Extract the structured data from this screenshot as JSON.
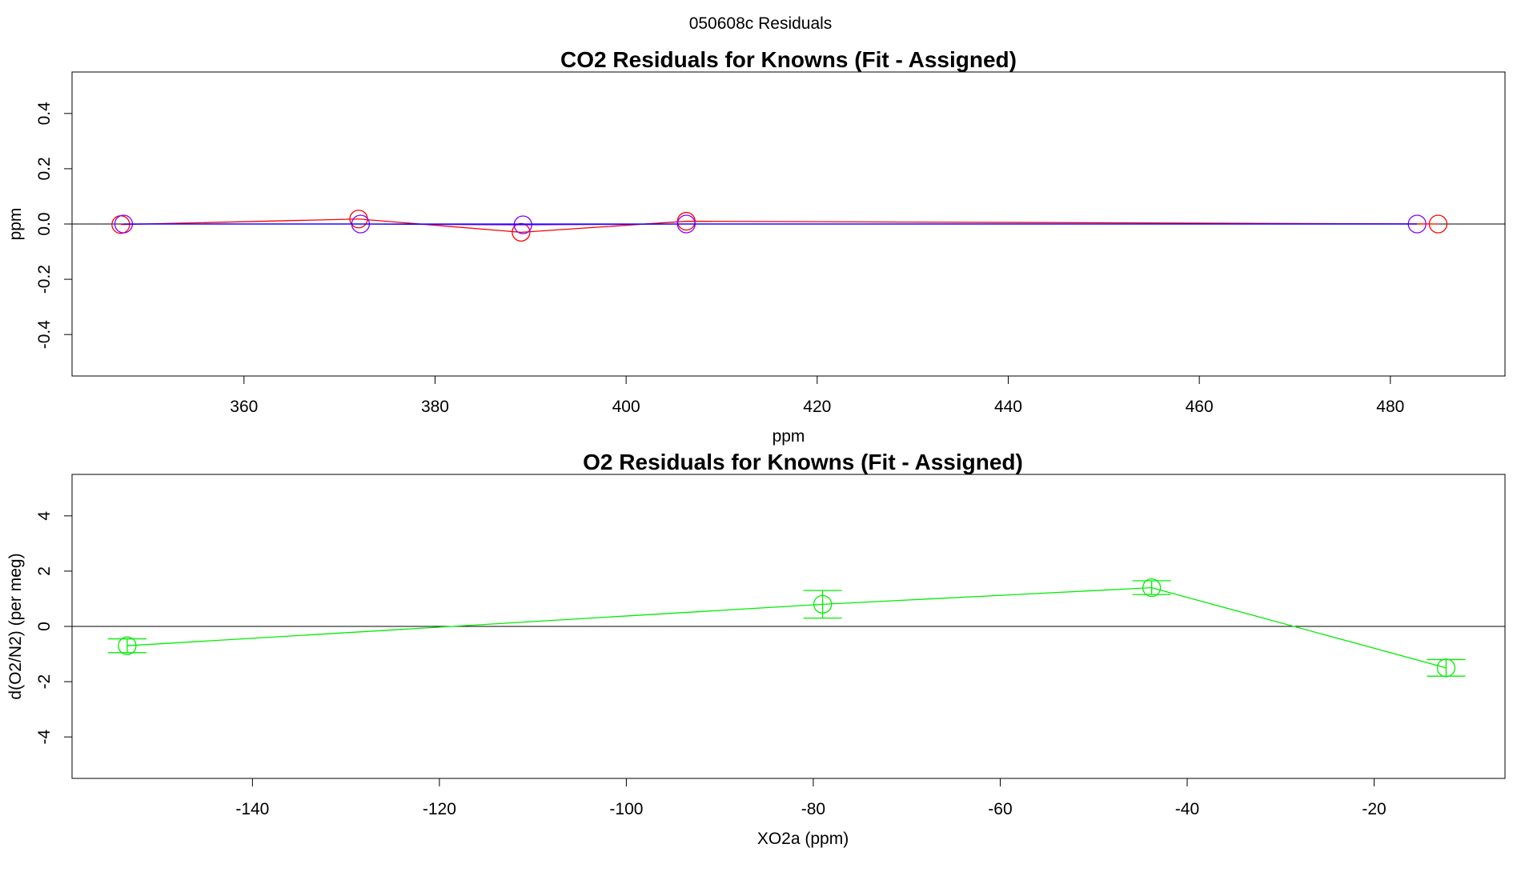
{
  "page_title": "050608c  Residuals",
  "chart_data": [
    {
      "type": "line",
      "title": "CO2 Residuals for Knowns (Fit - Assigned)",
      "xlabel": "ppm",
      "ylabel": "ppm",
      "xlim": [
        342,
        492
      ],
      "ylim": [
        -0.55,
        0.55
      ],
      "xticks": [
        360,
        380,
        400,
        420,
        440,
        460,
        480
      ],
      "yticks": [
        -0.4,
        -0.2,
        0.0,
        0.2,
        0.4
      ],
      "hline": 0,
      "series": [
        {
          "color": "#ff0000",
          "x": [
            347.1,
            372.0,
            389.0,
            406.3,
            485.0
          ],
          "y": [
            -0.002,
            0.018,
            -0.03,
            0.01,
            0.0
          ]
        },
        {
          "color": "#8000ff",
          "x": [
            347.4,
            372.2,
            389.2,
            406.3,
            482.8
          ],
          "y": [
            0.0,
            0.0,
            -0.003,
            0.0,
            0.0
          ]
        },
        {
          "color": "#0000ff",
          "x": [
            347.4,
            372.2,
            389.2,
            406.3,
            482.8
          ],
          "y": [
            0.0,
            0.0,
            0.0,
            0.0,
            0.0
          ],
          "line_only": true
        }
      ]
    },
    {
      "type": "line",
      "title": "O2 Residuals for Knowns (Fit - Assigned)",
      "xlabel": "XO2a (ppm)",
      "ylabel": "d(O2/N2) (per meg)",
      "xlim": [
        -159.3,
        -6.0
      ],
      "ylim": [
        -5.5,
        5.5
      ],
      "xticks": [
        -140,
        -120,
        -100,
        -80,
        -60,
        -40,
        -20
      ],
      "yticks": [
        -4,
        -2,
        0,
        2,
        4
      ],
      "hline": 0,
      "series": [
        {
          "color": "#00ee00",
          "x": [
            -153.4,
            -79.0,
            -43.8,
            -12.3
          ],
          "y": [
            -0.7,
            0.8,
            1.4,
            -1.5
          ],
          "err": [
            0.25,
            0.5,
            0.25,
            0.3
          ]
        }
      ]
    }
  ]
}
